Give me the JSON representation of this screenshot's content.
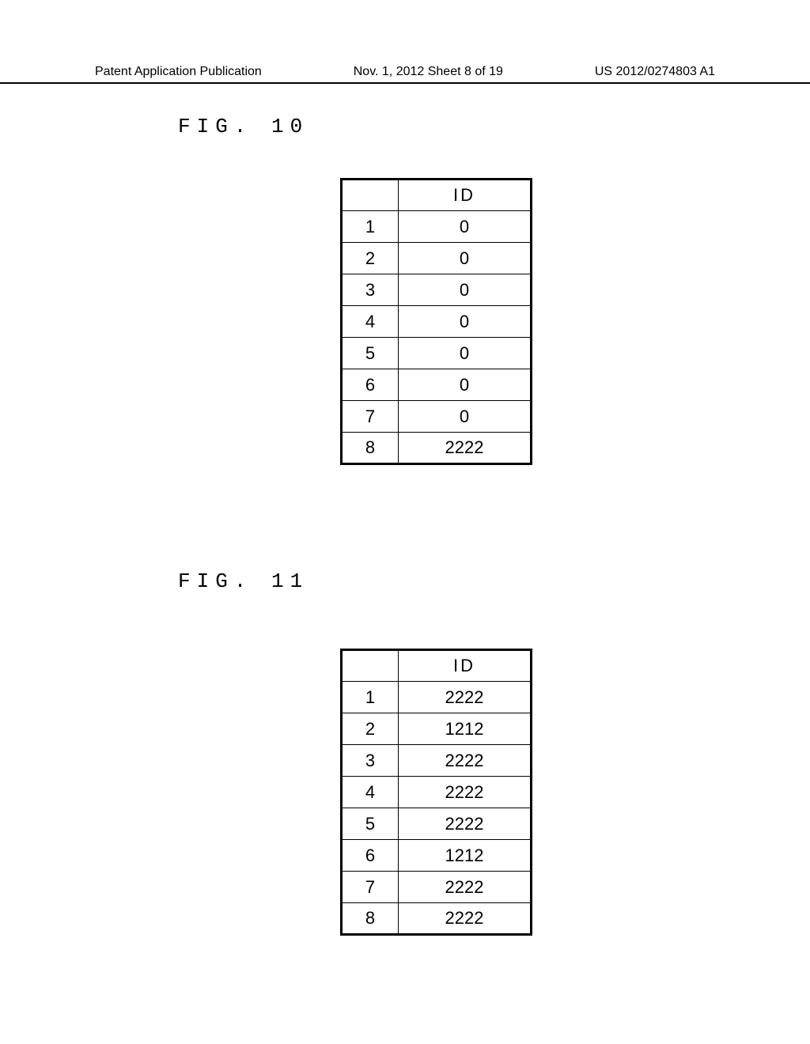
{
  "header": {
    "left": "Patent Application Publication",
    "center": "Nov. 1, 2012  Sheet 8 of 19",
    "right": "US 2012/0274803 A1"
  },
  "figure10": {
    "label": "FIG. 10",
    "columns": [
      "",
      "ID"
    ],
    "rows": [
      [
        "1",
        "0"
      ],
      [
        "2",
        "0"
      ],
      [
        "3",
        "0"
      ],
      [
        "4",
        "0"
      ],
      [
        "5",
        "0"
      ],
      [
        "6",
        "0"
      ],
      [
        "7",
        "0"
      ],
      [
        "8",
        "2222"
      ]
    ]
  },
  "figure11": {
    "label": "FIG. 11",
    "columns": [
      "",
      "ID"
    ],
    "rows": [
      [
        "1",
        "2222"
      ],
      [
        "2",
        "1212"
      ],
      [
        "3",
        "2222"
      ],
      [
        "4",
        "2222"
      ],
      [
        "5",
        "2222"
      ],
      [
        "6",
        "1212"
      ],
      [
        "7",
        "2222"
      ],
      [
        "8",
        "2222"
      ]
    ]
  }
}
